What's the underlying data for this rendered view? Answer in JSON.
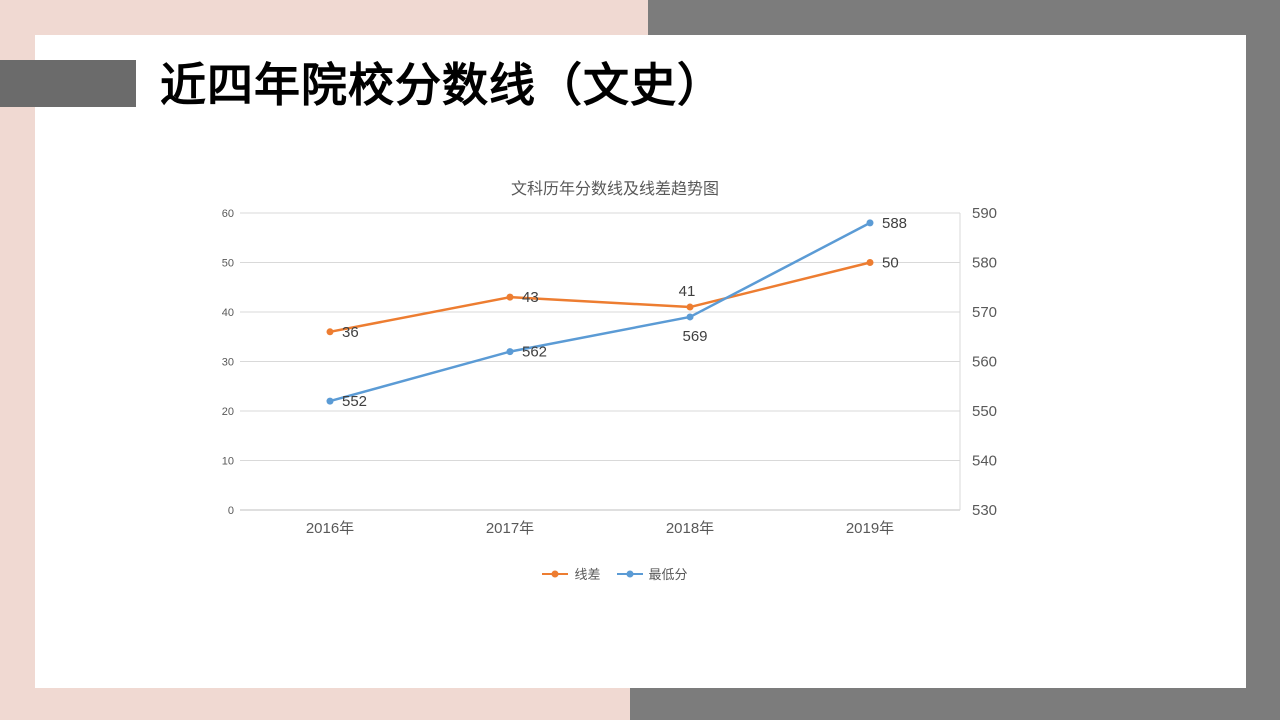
{
  "slide": {
    "title": "近四年院校分数线（文史）"
  },
  "theme": {
    "background_pink": "#F0D9D2",
    "background_gray": "#7C7C7C",
    "accent_bar_gray": "#6B6B6B",
    "series_orange": "#ED7D31",
    "series_blue": "#5B9BD5",
    "axis_text": "#595959",
    "gridline": "#D9D9D9"
  },
  "chart_data": {
    "type": "line",
    "title": "文科历年分数线及线差趋势图",
    "categories": [
      "2016年",
      "2017年",
      "2018年",
      "2019年"
    ],
    "series": [
      {
        "name": "线差",
        "color": "#ED7D31",
        "axis": "left",
        "values": [
          36,
          43,
          41,
          50
        ],
        "label_positions": [
          "right",
          "right",
          "above",
          "right"
        ]
      },
      {
        "name": "最低分",
        "color": "#5B9BD5",
        "axis": "right",
        "values": [
          552,
          562,
          569,
          588
        ],
        "label_positions": [
          "right",
          "right",
          "below",
          "right"
        ]
      }
    ],
    "left_axis": {
      "min": 0,
      "max": 60,
      "step": 10,
      "ticks": [
        0,
        10,
        20,
        30,
        40,
        50,
        60
      ]
    },
    "right_axis": {
      "min": 530,
      "max": 590,
      "step": 10,
      "ticks": [
        530,
        540,
        550,
        560,
        570,
        580,
        590
      ]
    },
    "grid": true,
    "legend_position": "bottom"
  }
}
